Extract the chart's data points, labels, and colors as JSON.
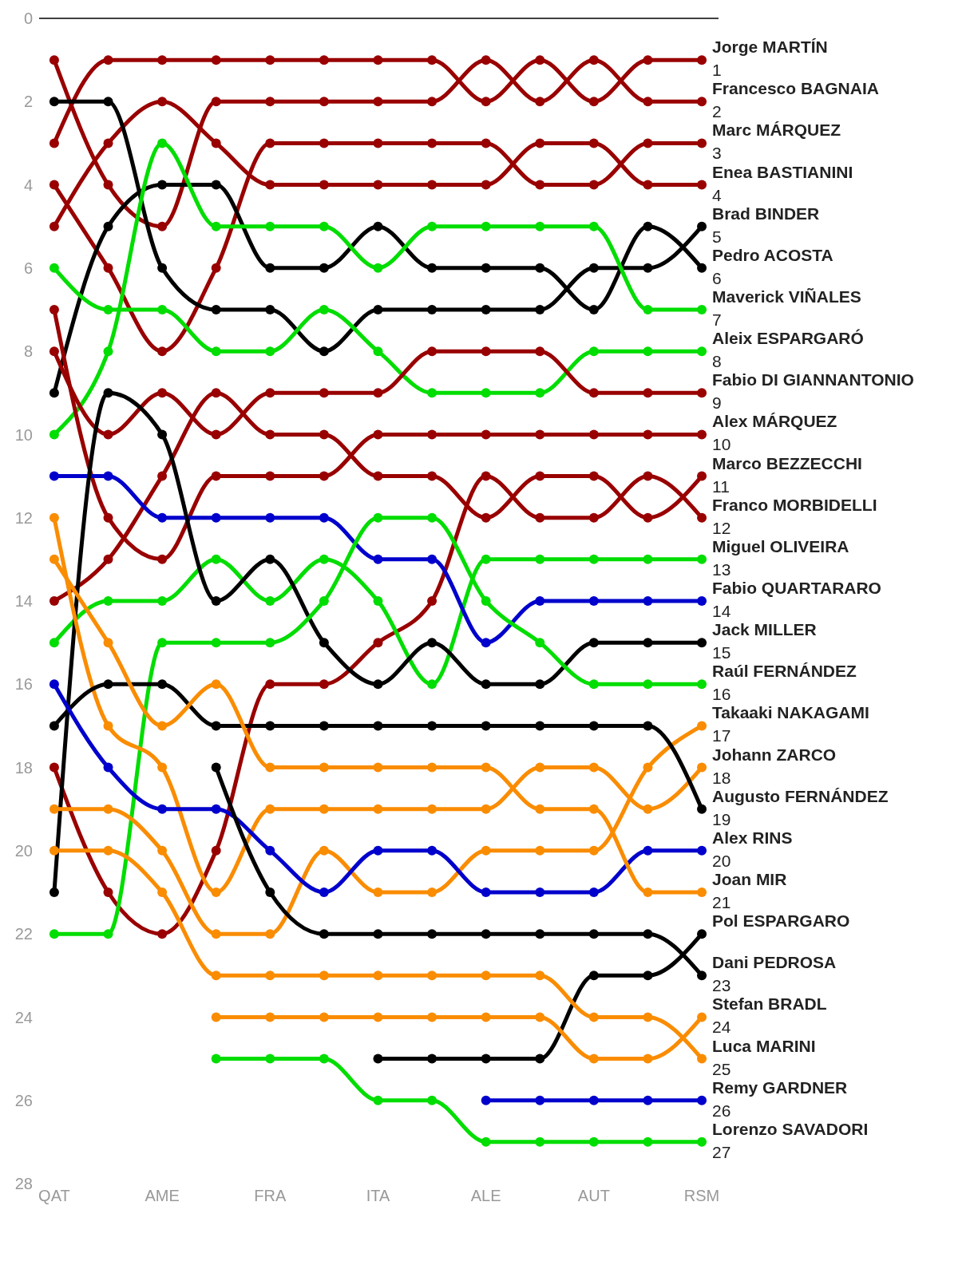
{
  "chart_data": {
    "type": "line",
    "categories": [
      "QAT",
      null,
      "AME",
      null,
      "FRA",
      null,
      "ITA",
      null,
      "ALE",
      null,
      "AUT",
      null,
      "RSM"
    ],
    "ylim": [
      28,
      0
    ],
    "yticks": [
      0,
      2,
      4,
      6,
      8,
      10,
      12,
      14,
      16,
      18,
      20,
      22,
      24,
      26,
      28
    ],
    "marker": "circle",
    "ref_lines": [
      {
        "axis": "y",
        "value": 0,
        "color": "#000000"
      }
    ],
    "series": [
      {
        "name": "Jorge MARTÍN",
        "color": "#990000",
        "values": [
          3,
          1,
          1,
          1,
          1,
          1,
          1,
          1,
          2,
          1,
          2,
          1,
          1
        ],
        "value_labels": [
          null,
          null,
          null,
          null,
          null,
          null,
          null,
          null,
          null,
          null,
          null,
          null,
          "1"
        ]
      },
      {
        "name": "Francesco BAGNAIA",
        "color": "#990000",
        "values": [
          1,
          4,
          5,
          2,
          2,
          2,
          2,
          2,
          1,
          2,
          1,
          2,
          2
        ],
        "value_labels": [
          null,
          null,
          null,
          null,
          null,
          null,
          null,
          null,
          null,
          null,
          null,
          null,
          "2"
        ]
      },
      {
        "name": "Marc MÁRQUEZ",
        "color": "#990000",
        "values": [
          4,
          6,
          8,
          6,
          3,
          3,
          3,
          3,
          3,
          4,
          4,
          3,
          3
        ],
        "value_labels": [
          null,
          null,
          null,
          null,
          null,
          null,
          null,
          null,
          null,
          null,
          null,
          null,
          "3"
        ]
      },
      {
        "name": "Enea BASTIANINI",
        "color": "#990000",
        "values": [
          5,
          3,
          2,
          3,
          4,
          4,
          4,
          4,
          4,
          3,
          3,
          4,
          4
        ],
        "value_labels": [
          null,
          null,
          null,
          null,
          null,
          null,
          null,
          null,
          null,
          null,
          null,
          null,
          "4"
        ]
      },
      {
        "name": "Brad BINDER",
        "color": "#000000",
        "values": [
          2,
          2,
          6,
          7,
          7,
          8,
          7,
          7,
          7,
          7,
          6,
          6,
          5
        ],
        "value_labels": [
          null,
          null,
          null,
          null,
          null,
          null,
          null,
          null,
          null,
          null,
          null,
          null,
          "5"
        ]
      },
      {
        "name": "Pedro ACOSTA",
        "color": "#000000",
        "values": [
          9,
          5,
          4,
          4,
          6,
          6,
          5,
          6,
          6,
          6,
          7,
          5,
          6
        ],
        "value_labels": [
          null,
          null,
          null,
          null,
          null,
          null,
          null,
          null,
          null,
          null,
          null,
          null,
          "6"
        ]
      },
      {
        "name": "Maverick VIÑALES",
        "color": "#00dd00",
        "values": [
          10,
          8,
          3,
          5,
          5,
          5,
          6,
          5,
          5,
          5,
          5,
          7,
          7
        ],
        "value_labels": [
          null,
          null,
          null,
          null,
          null,
          null,
          null,
          null,
          null,
          null,
          null,
          null,
          "7"
        ]
      },
      {
        "name": "Aleix ESPARGARÓ",
        "color": "#00dd00",
        "values": [
          6,
          7,
          7,
          8,
          8,
          7,
          8,
          9,
          9,
          9,
          8,
          8,
          8
        ],
        "value_labels": [
          null,
          null,
          null,
          null,
          null,
          null,
          null,
          null,
          null,
          null,
          null,
          null,
          "8"
        ]
      },
      {
        "name": "Fabio DI GIANNANTONIO",
        "color": "#990000",
        "values": [
          8,
          10,
          9,
          10,
          9,
          9,
          9,
          8,
          8,
          8,
          9,
          9,
          9
        ],
        "value_labels": [
          null,
          null,
          null,
          null,
          null,
          null,
          null,
          null,
          null,
          null,
          null,
          null,
          "9"
        ]
      },
      {
        "name": "Alex MÁRQUEZ",
        "color": "#990000",
        "values": [
          7,
          12,
          13,
          11,
          11,
          11,
          10,
          10,
          10,
          10,
          10,
          10,
          10
        ],
        "value_labels": [
          null,
          null,
          null,
          null,
          null,
          null,
          null,
          null,
          null,
          null,
          null,
          null,
          "10"
        ]
      },
      {
        "name": "Marco BEZZECCHI",
        "color": "#990000",
        "values": [
          14,
          13,
          11,
          9,
          10,
          10,
          11,
          11,
          12,
          11,
          11,
          12,
          11
        ],
        "value_labels": [
          null,
          null,
          null,
          null,
          null,
          null,
          null,
          null,
          null,
          null,
          null,
          null,
          "11"
        ]
      },
      {
        "name": "Franco MORBIDELLI",
        "color": "#990000",
        "values": [
          18,
          21,
          22,
          20,
          16,
          16,
          15,
          14,
          11,
          12,
          12,
          11,
          12
        ],
        "value_labels": [
          null,
          null,
          null,
          null,
          null,
          null,
          null,
          null,
          null,
          null,
          null,
          null,
          "12"
        ]
      },
      {
        "name": "Miguel OLIVEIRA",
        "color": "#00dd00",
        "values": [
          15,
          14,
          14,
          13,
          14,
          13,
          14,
          16,
          13,
          13,
          13,
          13,
          13
        ],
        "value_labels": [
          null,
          null,
          null,
          null,
          null,
          null,
          null,
          null,
          null,
          null,
          null,
          null,
          "13"
        ]
      },
      {
        "name": "Fabio QUARTARARO",
        "color": "#0000cc",
        "values": [
          11,
          11,
          12,
          12,
          12,
          12,
          13,
          13,
          15,
          14,
          14,
          14,
          14
        ],
        "value_labels": [
          null,
          null,
          null,
          null,
          null,
          null,
          null,
          null,
          null,
          null,
          null,
          null,
          "14"
        ]
      },
      {
        "name": "Jack MILLER",
        "color": "#000000",
        "values": [
          21,
          9,
          10,
          14,
          13,
          15,
          16,
          15,
          16,
          16,
          15,
          15,
          15
        ],
        "value_labels": [
          null,
          null,
          null,
          null,
          null,
          null,
          null,
          null,
          null,
          null,
          null,
          null,
          "15"
        ]
      },
      {
        "name": "Raúl FERNÁNDEZ",
        "color": "#00dd00",
        "values": [
          22,
          22,
          15,
          15,
          15,
          14,
          12,
          12,
          14,
          15,
          16,
          16,
          16
        ],
        "value_labels": [
          null,
          null,
          null,
          null,
          null,
          null,
          null,
          null,
          null,
          null,
          null,
          null,
          "16"
        ]
      },
      {
        "name": "Takaaki NAKAGAMI",
        "color": "#fa8c00",
        "values": [
          19,
          19,
          20,
          22,
          22,
          20,
          21,
          21,
          20,
          20,
          20,
          18,
          17
        ],
        "value_labels": [
          null,
          null,
          null,
          null,
          null,
          null,
          null,
          null,
          null,
          null,
          null,
          null,
          "17"
        ]
      },
      {
        "name": "Johann ZARCO",
        "color": "#fa8c00",
        "values": [
          12,
          17,
          18,
          21,
          19,
          19,
          19,
          19,
          19,
          18,
          18,
          19,
          18
        ],
        "value_labels": [
          null,
          null,
          null,
          null,
          null,
          null,
          null,
          null,
          null,
          null,
          null,
          null,
          "18"
        ]
      },
      {
        "name": "Augusto FERNÁNDEZ",
        "color": "#000000",
        "values": [
          17,
          16,
          16,
          17,
          17,
          17,
          17,
          17,
          17,
          17,
          17,
          17,
          19
        ],
        "value_labels": [
          null,
          null,
          null,
          null,
          null,
          null,
          null,
          null,
          null,
          null,
          null,
          null,
          "19"
        ]
      },
      {
        "name": "Alex RINS",
        "color": "#0000cc",
        "values": [
          16,
          18,
          19,
          19,
          20,
          21,
          20,
          20,
          21,
          21,
          21,
          20,
          20
        ],
        "value_labels": [
          null,
          null,
          null,
          null,
          null,
          null,
          null,
          null,
          null,
          null,
          null,
          null,
          "20"
        ]
      },
      {
        "name": "Joan MIR",
        "color": "#fa8c00",
        "values": [
          13,
          15,
          17,
          16,
          18,
          18,
          18,
          18,
          18,
          19,
          19,
          21,
          21
        ],
        "value_labels": [
          null,
          null,
          null,
          null,
          null,
          null,
          null,
          null,
          null,
          null,
          null,
          null,
          "21"
        ]
      },
      {
        "name": "Pol ESPARGARO",
        "color": "#000000",
        "values": [
          null,
          null,
          null,
          null,
          null,
          null,
          25,
          25,
          25,
          25,
          23,
          23,
          22
        ],
        "value_labels": [
          null,
          null,
          null,
          null,
          null,
          null,
          null,
          null,
          null,
          null,
          null,
          null,
          null
        ]
      },
      {
        "name": "Dani PEDROSA",
        "color": "#000000",
        "values": [
          null,
          null,
          null,
          18,
          21,
          22,
          22,
          22,
          22,
          22,
          22,
          22,
          23
        ],
        "value_labels": [
          null,
          null,
          null,
          null,
          null,
          null,
          null,
          null,
          null,
          null,
          null,
          null,
          "23"
        ]
      },
      {
        "name": "Stefan BRADL",
        "color": "#fa8c00",
        "values": [
          null,
          null,
          null,
          24,
          24,
          24,
          24,
          24,
          24,
          24,
          25,
          25,
          24
        ],
        "value_labels": [
          null,
          null,
          null,
          null,
          null,
          null,
          null,
          null,
          null,
          null,
          null,
          null,
          "24"
        ]
      },
      {
        "name": "Luca MARINI",
        "color": "#fa8c00",
        "values": [
          20,
          20,
          21,
          23,
          23,
          23,
          23,
          23,
          23,
          23,
          24,
          24,
          25
        ],
        "value_labels": [
          null,
          null,
          null,
          null,
          null,
          null,
          null,
          null,
          null,
          null,
          null,
          null,
          "25"
        ]
      },
      {
        "name": "Remy GARDNER",
        "color": "#0000cc",
        "values": [
          null,
          null,
          null,
          null,
          null,
          null,
          null,
          null,
          26,
          26,
          26,
          26,
          26
        ],
        "value_labels": [
          null,
          null,
          null,
          null,
          null,
          null,
          null,
          null,
          null,
          null,
          null,
          null,
          "26"
        ]
      },
      {
        "name": "Lorenzo SAVADORI",
        "color": "#00dd00",
        "values": [
          null,
          null,
          null,
          25,
          25,
          25,
          26,
          26,
          27,
          27,
          27,
          27,
          27
        ],
        "value_labels": [
          null,
          null,
          null,
          null,
          null,
          null,
          null,
          null,
          null,
          null,
          null,
          null,
          "27"
        ]
      }
    ]
  }
}
